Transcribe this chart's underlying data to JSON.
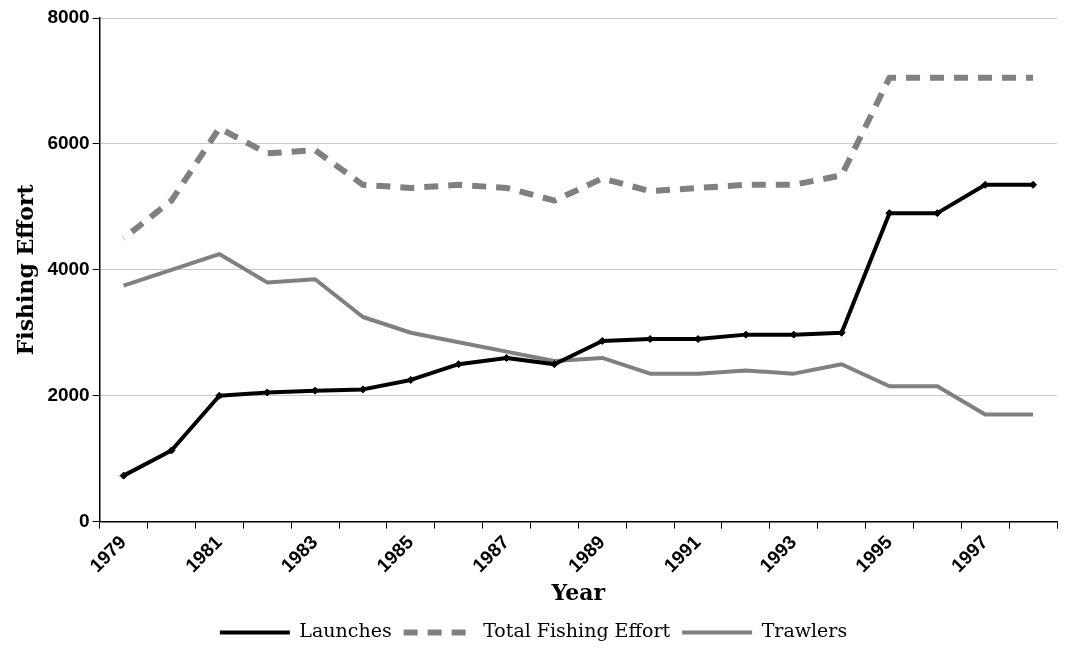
{
  "chart_data": {
    "type": "line",
    "xlabel": "Year",
    "ylabel": "Fishing Effort",
    "categories": [
      "1979",
      null,
      "1981",
      null,
      "1983",
      null,
      "1985",
      null,
      "1987",
      null,
      "1989",
      null,
      "1991",
      null,
      "1993",
      null,
      "1995",
      null,
      "1997",
      null
    ],
    "series": [
      {
        "name": "Launches",
        "color": "#000000",
        "marker": "diamond",
        "line_style": "solid",
        "values": [
          730,
          1130,
          2000,
          2050,
          2080,
          2100,
          2250,
          2500,
          2600,
          2500,
          2870,
          2900,
          2900,
          2970,
          2970,
          3000,
          4900,
          4900,
          5350,
          5350
        ]
      },
      {
        "name": "Total Fishing Effort",
        "color": "#808080",
        "marker": "none",
        "line_style": "dashed",
        "values": [
          4500,
          5100,
          6250,
          5850,
          5900,
          5350,
          5300,
          5350,
          5300,
          5100,
          5450,
          5250,
          5300,
          5350,
          5350,
          5500,
          7050,
          7050,
          7050,
          7050
        ]
      },
      {
        "name": "Trawlers",
        "color": "#808080",
        "marker": "none",
        "line_style": "solid",
        "values": [
          3750,
          4000,
          4250,
          3800,
          3850,
          3250,
          3000,
          2850,
          2700,
          2550,
          2600,
          2350,
          2350,
          2400,
          2350,
          2500,
          2150,
          2150,
          1700,
          1700
        ]
      }
    ],
    "ylim": [
      0,
      8000
    ],
    "yticks": [
      0,
      2000,
      4000,
      6000,
      8000
    ],
    "grid": "y",
    "legend": "bottom"
  }
}
